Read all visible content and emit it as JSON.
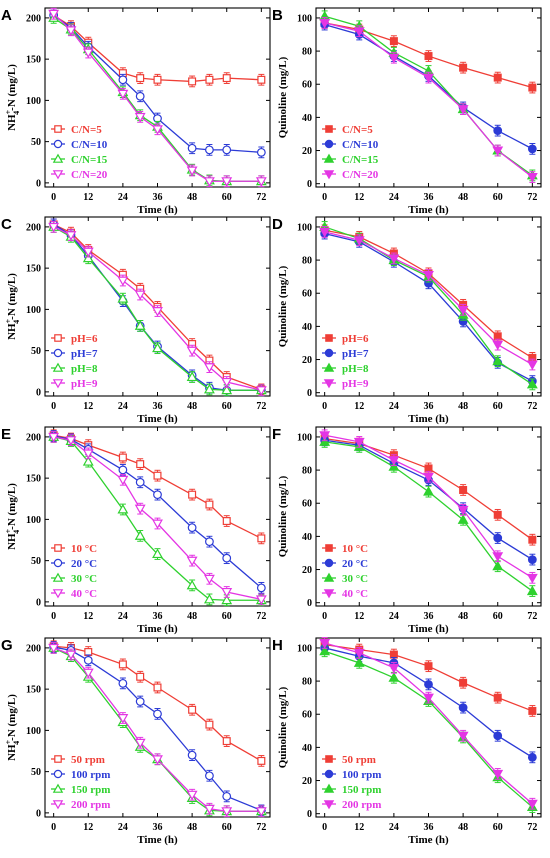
{
  "chart_data": [
    {
      "panel": "A",
      "type": "line",
      "marker": "open",
      "xlabel": "Time (h)",
      "ylabel": "NH4+-N (mg/L)",
      "xlim": [
        -3,
        75
      ],
      "ylim": [
        -5,
        212
      ],
      "xticks": [
        0,
        12,
        24,
        36,
        48,
        60,
        72
      ],
      "yticks": [
        0,
        50,
        100,
        150,
        200
      ],
      "x": [
        0,
        6,
        12,
        24,
        30,
        36,
        48,
        54,
        60,
        72
      ],
      "legend_position": "bottom-left",
      "series": [
        {
          "name": "C/N=5",
          "color": "#ef3e36",
          "values": [
            203,
            190,
            170,
            133,
            127,
            125,
            123,
            125,
            127,
            125
          ]
        },
        {
          "name": "C/N=10",
          "color": "#2c3bd6",
          "values": [
            203,
            188,
            165,
            125,
            105,
            78,
            42,
            40,
            40,
            37
          ]
        },
        {
          "name": "C/N=15",
          "color": "#2ed12e",
          "values": [
            200,
            186,
            162,
            110,
            82,
            68,
            16,
            3,
            2,
            2
          ]
        },
        {
          "name": "C/N=20",
          "color": "#e435e4",
          "values": [
            205,
            185,
            158,
            108,
            80,
            65,
            15,
            2,
            2,
            2
          ]
        }
      ]
    },
    {
      "panel": "B",
      "type": "line",
      "marker": "filled",
      "xlabel": "Time (h)",
      "ylabel": "Quinoline (mg/L)",
      "xlim": [
        -3,
        75
      ],
      "ylim": [
        -2,
        106
      ],
      "xticks": [
        0,
        12,
        24,
        36,
        48,
        60,
        72
      ],
      "yticks": [
        0,
        20,
        40,
        60,
        80,
        100
      ],
      "x": [
        0,
        12,
        24,
        36,
        48,
        60,
        72
      ],
      "legend_position": "bottom-left",
      "series": [
        {
          "name": "C/N=5",
          "color": "#ef3e36",
          "values": [
            97,
            93,
            86,
            77,
            70,
            64,
            58
          ]
        },
        {
          "name": "C/N=10",
          "color": "#2c3bd6",
          "values": [
            96,
            90,
            77,
            65,
            46,
            32,
            21
          ]
        },
        {
          "name": "C/N=15",
          "color": "#2ed12e",
          "values": [
            101,
            95,
            79,
            68,
            45,
            20,
            5
          ]
        },
        {
          "name": "C/N=20",
          "color": "#e435e4",
          "values": [
            97,
            92,
            76,
            64,
            45,
            20,
            4
          ]
        }
      ]
    },
    {
      "panel": "C",
      "type": "line",
      "marker": "open",
      "xlabel": "Time (h)",
      "ylabel": "NH4+-N (mg/L)",
      "xlim": [
        -3,
        75
      ],
      "ylim": [
        -5,
        212
      ],
      "xticks": [
        0,
        12,
        24,
        36,
        48,
        60,
        72
      ],
      "yticks": [
        0,
        50,
        100,
        150,
        200
      ],
      "x": [
        0,
        6,
        12,
        24,
        30,
        36,
        48,
        54,
        60,
        72
      ],
      "legend_position": "bottom-left",
      "series": [
        {
          "name": "pH=6",
          "color": "#ef3e36",
          "values": [
            203,
            193,
            172,
            142,
            125,
            103,
            58,
            38,
            18,
            3
          ]
        },
        {
          "name": "pH=7",
          "color": "#2c3bd6",
          "values": [
            203,
            190,
            165,
            110,
            80,
            55,
            20,
            5,
            2,
            2
          ]
        },
        {
          "name": "pH=8",
          "color": "#2ed12e",
          "values": [
            200,
            188,
            162,
            113,
            80,
            53,
            18,
            3,
            2,
            2
          ]
        },
        {
          "name": "pH=9",
          "color": "#e435e4",
          "values": [
            200,
            190,
            170,
            135,
            118,
            98,
            50,
            30,
            12,
            2
          ]
        }
      ]
    },
    {
      "panel": "D",
      "type": "line",
      "marker": "filled",
      "xlabel": "Time (h)",
      "ylabel": "Quinoline (mg/L)",
      "xlim": [
        -3,
        75
      ],
      "ylim": [
        -2,
        106
      ],
      "xticks": [
        0,
        12,
        24,
        36,
        48,
        60,
        72
      ],
      "yticks": [
        0,
        20,
        40,
        60,
        80,
        100
      ],
      "x": [
        0,
        12,
        24,
        36,
        48,
        60,
        72
      ],
      "legend_position": "bottom-left",
      "series": [
        {
          "name": "pH=6",
          "color": "#ef3e36",
          "values": [
            98,
            94,
            84,
            72,
            53,
            34,
            21
          ]
        },
        {
          "name": "pH=7",
          "color": "#2c3bd6",
          "values": [
            96,
            91,
            79,
            66,
            43,
            18,
            7
          ]
        },
        {
          "name": "pH=8",
          "color": "#2ed12e",
          "values": [
            100,
            93,
            80,
            70,
            47,
            19,
            5
          ]
        },
        {
          "name": "pH=9",
          "color": "#e435e4",
          "values": [
            97,
            92,
            81,
            71,
            50,
            29,
            17
          ]
        }
      ]
    },
    {
      "panel": "E",
      "type": "line",
      "marker": "open",
      "xlabel": "Time (h)",
      "ylabel": "NH4+-N (mg/L)",
      "xlim": [
        -3,
        75
      ],
      "ylim": [
        -5,
        212
      ],
      "xticks": [
        0,
        12,
        24,
        36,
        48,
        60,
        72
      ],
      "yticks": [
        0,
        50,
        100,
        150,
        200
      ],
      "x": [
        0,
        6,
        12,
        24,
        30,
        36,
        48,
        54,
        60,
        72
      ],
      "legend_position": "bottom-left",
      "series": [
        {
          "name": "10 °C",
          "color": "#ef3e36",
          "values": [
            202,
            198,
            190,
            175,
            167,
            153,
            130,
            118,
            98,
            77
          ]
        },
        {
          "name": "20 °C",
          "color": "#2c3bd6",
          "values": [
            201,
            197,
            185,
            160,
            145,
            130,
            90,
            73,
            53,
            17
          ]
        },
        {
          "name": "30 °C",
          "color": "#2ed12e",
          "values": [
            200,
            195,
            170,
            112,
            80,
            58,
            20,
            3,
            2,
            2
          ]
        },
        {
          "name": "40 °C",
          "color": "#e435e4",
          "values": [
            200,
            196,
            180,
            148,
            113,
            95,
            50,
            28,
            12,
            3
          ]
        }
      ]
    },
    {
      "panel": "F",
      "type": "line",
      "marker": "filled",
      "xlabel": "Time (h)",
      "ylabel": "Quinoline (mg/L)",
      "xlim": [
        -3,
        75
      ],
      "ylim": [
        -2,
        106
      ],
      "xticks": [
        0,
        12,
        24,
        36,
        48,
        60,
        72
      ],
      "yticks": [
        0,
        20,
        40,
        60,
        80,
        100
      ],
      "x": [
        0,
        12,
        24,
        36,
        48,
        60,
        72
      ],
      "legend_position": "bottom-left",
      "series": [
        {
          "name": "10 °C",
          "color": "#ef3e36",
          "values": [
            99,
            96,
            89,
            81,
            68,
            53,
            38
          ]
        },
        {
          "name": "20 °C",
          "color": "#2c3bd6",
          "values": [
            98,
            95,
            84,
            74,
            57,
            39,
            26
          ]
        },
        {
          "name": "30 °C",
          "color": "#2ed12e",
          "values": [
            97,
            94,
            82,
            67,
            50,
            22,
            7
          ]
        },
        {
          "name": "40 °C",
          "color": "#e435e4",
          "values": [
            101,
            97,
            86,
            76,
            56,
            28,
            15
          ]
        }
      ]
    },
    {
      "panel": "G",
      "type": "line",
      "marker": "open",
      "xlabel": "Time (h)",
      "ylabel": "NH4+-N (mg/L)",
      "xlim": [
        -3,
        75
      ],
      "ylim": [
        -5,
        212
      ],
      "xticks": [
        0,
        12,
        24,
        36,
        48,
        60,
        72
      ],
      "yticks": [
        0,
        50,
        100,
        150,
        200
      ],
      "x": [
        0,
        6,
        12,
        24,
        30,
        36,
        48,
        54,
        60,
        72
      ],
      "legend_position": "bottom-left",
      "series": [
        {
          "name": "50 rpm",
          "color": "#ef3e36",
          "values": [
            202,
            200,
            195,
            180,
            165,
            152,
            125,
            107,
            87,
            63
          ]
        },
        {
          "name": "100 rpm",
          "color": "#2c3bd6",
          "values": [
            201,
            197,
            185,
            157,
            135,
            120,
            70,
            45,
            20,
            3
          ]
        },
        {
          "name": "150 rpm",
          "color": "#2ed12e",
          "values": [
            200,
            190,
            165,
            110,
            80,
            65,
            18,
            3,
            2,
            2
          ]
        },
        {
          "name": "200 rpm",
          "color": "#e435e4",
          "values": [
            200,
            192,
            170,
            115,
            85,
            65,
            22,
            5,
            2,
            2
          ]
        }
      ]
    },
    {
      "panel": "H",
      "type": "line",
      "marker": "filled",
      "xlabel": "Time (h)",
      "ylabel": "Quinoline (mg/L)",
      "xlim": [
        -3,
        75
      ],
      "ylim": [
        -2,
        106
      ],
      "xticks": [
        0,
        12,
        24,
        36,
        48,
        60,
        72
      ],
      "yticks": [
        0,
        20,
        40,
        60,
        80,
        100
      ],
      "x": [
        0,
        12,
        24,
        36,
        48,
        60,
        72
      ],
      "legend_position": "bottom-left",
      "series": [
        {
          "name": "50 rpm",
          "color": "#ef3e36",
          "values": [
            102,
            99,
            96,
            89,
            79,
            70,
            62
          ]
        },
        {
          "name": "100 rpm",
          "color": "#2c3bd6",
          "values": [
            100,
            95,
            91,
            78,
            64,
            47,
            34
          ]
        },
        {
          "name": "150 rpm",
          "color": "#2ed12e",
          "values": [
            98,
            91,
            82,
            68,
            46,
            22,
            4
          ]
        },
        {
          "name": "200 rpm",
          "color": "#e435e4",
          "values": [
            103,
            97,
            88,
            70,
            47,
            24,
            6
          ]
        }
      ]
    }
  ]
}
